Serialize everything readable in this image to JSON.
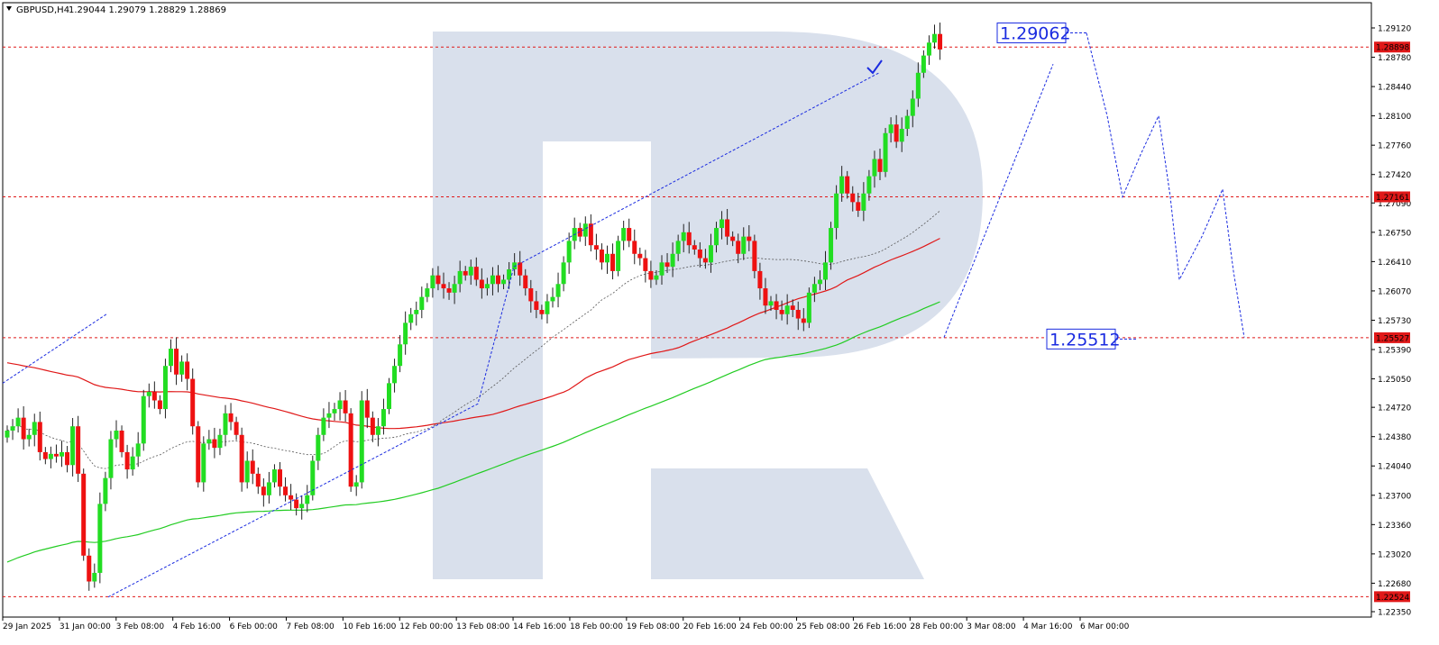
{
  "header": {
    "symbol": "GBPUSD,H4",
    "ohlc": "1.29044 1.29079 1.28829 1.28869"
  },
  "colors": {
    "bull": "#22dd22",
    "bear": "#ee1111",
    "ma_red": "#e01818",
    "ma_green": "#22cc22",
    "ma_dash": "#555555",
    "forecast": "#1a2be0",
    "level": "#e01818",
    "watermark": "#d9e0ec",
    "frame": "#000000"
  },
  "chart_data": {
    "type": "candlestick",
    "symbol": "GBPUSD",
    "timeframe": "H4",
    "y_axis": {
      "min": 1.2235,
      "max": 1.2924,
      "ticks": [
        "1.29120",
        "1.28780",
        "1.28440",
        "1.28100",
        "1.27760",
        "1.27420",
        "1.27090",
        "1.26750",
        "1.26410",
        "1.26070",
        "1.25730",
        "1.25390",
        "1.25050",
        "1.24720",
        "1.24380",
        "1.24040",
        "1.23700",
        "1.23360",
        "1.23020",
        "1.22680",
        "1.22350"
      ]
    },
    "x_axis": {
      "labels": [
        "29 Jan 2025",
        "31 Jan 00:00",
        "3 Feb 08:00",
        "4 Feb 16:00",
        "6 Feb 00:00",
        "7 Feb 08:00",
        "10 Feb 16:00",
        "12 Feb 00:00",
        "13 Feb 08:00",
        "14 Feb 16:00",
        "18 Feb 00:00",
        "19 Feb 08:00",
        "20 Feb 16:00",
        "24 Feb 00:00",
        "25 Feb 08:00",
        "26 Feb 16:00",
        "28 Feb 00:00",
        "3 Mar 08:00",
        "4 Mar 16:00",
        "6 Mar 00:00"
      ]
    },
    "horizontal_levels": [
      {
        "price": 1.28898,
        "label": "1.28898"
      },
      {
        "price": 1.27161,
        "label": "1.27161"
      },
      {
        "price": 1.25527,
        "label": "1.25527"
      },
      {
        "price": 1.22524,
        "label": "1.22524"
      }
    ],
    "annotations": [
      {
        "text": "1.29062",
        "price": 1.29062
      },
      {
        "text": "1.25512",
        "price": 1.25512
      }
    ],
    "candles_close": [
      1.2445,
      1.245,
      1.246,
      1.2435,
      1.244,
      1.2455,
      1.242,
      1.2412,
      1.2418,
      1.2415,
      1.242,
      1.2405,
      1.245,
      1.2395,
      1.23,
      1.227,
      1.228,
      1.236,
      1.239,
      1.2435,
      1.2445,
      1.242,
      1.24,
      1.2415,
      1.243,
      1.2485,
      1.249,
      1.248,
      1.247,
      1.252,
      1.254,
      1.251,
      1.2525,
      1.2505,
      1.245,
      1.2385,
      1.243,
      1.2435,
      1.2425,
      1.244,
      1.2465,
      1.2455,
      1.244,
      1.2385,
      1.241,
      1.2395,
      1.238,
      1.237,
      1.2385,
      1.24,
      1.238,
      1.237,
      1.2365,
      1.2355,
      1.236,
      1.237,
      1.241,
      1.244,
      1.246,
      1.2465,
      1.247,
      1.248,
      1.2465,
      1.238,
      1.2385,
      1.248,
      1.246,
      1.244,
      1.245,
      1.247,
      1.25,
      1.252,
      1.2545,
      1.257,
      1.258,
      1.2585,
      1.26,
      1.261,
      1.2625,
      1.2615,
      1.261,
      1.2605,
      1.2615,
      1.263,
      1.2625,
      1.2635,
      1.262,
      1.261,
      1.2615,
      1.2625,
      1.2615,
      1.262,
      1.2632,
      1.264,
      1.2625,
      1.261,
      1.2595,
      1.2585,
      1.258,
      1.2595,
      1.26,
      1.2615,
      1.264,
      1.2665,
      1.268,
      1.267,
      1.2685,
      1.266,
      1.2655,
      1.264,
      1.265,
      1.263,
      1.2665,
      1.268,
      1.2665,
      1.265,
      1.2645,
      1.263,
      1.262,
      1.2625,
      1.264,
      1.2635,
      1.265,
      1.2665,
      1.2675,
      1.266,
      1.2655,
      1.2645,
      1.264,
      1.266,
      1.268,
      1.269,
      1.267,
      1.2665,
      1.265,
      1.267,
      1.2665,
      1.263,
      1.261,
      1.259,
      1.2595,
      1.2585,
      1.258,
      1.259,
      1.2585,
      1.2575,
      1.257,
      1.2605,
      1.2615,
      1.262,
      1.264,
      1.268,
      1.272,
      1.274,
      1.272,
      1.271,
      1.27,
      1.272,
      1.274,
      1.276,
      1.2745,
      1.279,
      1.28,
      1.278,
      1.2795,
      1.281,
      1.283,
      1.286,
      1.288,
      1.2895,
      1.2905,
      1.2887
    ]
  }
}
